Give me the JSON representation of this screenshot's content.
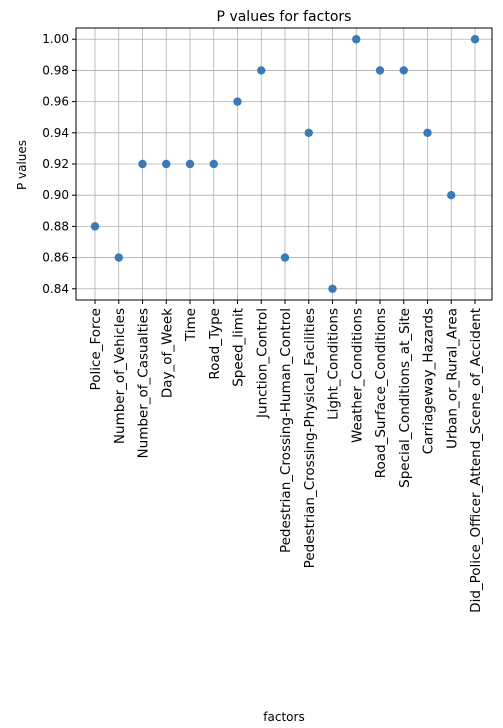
{
  "chart_data": {
    "type": "scatter",
    "title": "P values for factors",
    "xlabel": "factors",
    "ylabel": "P values",
    "categories": [
      "Police_Force",
      "Number_of_Vehicles",
      "Number_of_Casualties",
      "Day_of_Week",
      "Time",
      "Road_Type",
      "Speed_limit",
      "Junction_Control",
      "Pedestrian_Crossing-Human_Control",
      "Pedestrian_Crossing-Physical_Facilities",
      "Light_Conditions",
      "Weather_Conditions",
      "Road_Surface_Conditions",
      "Special_Conditions_at_Site",
      "Carriageway_Hazards",
      "Urban_or_Rural_Area",
      "Did_Police_Officer_Attend_Scene_of_Accident"
    ],
    "values": [
      0.88,
      0.86,
      0.92,
      0.92,
      0.92,
      0.92,
      0.96,
      0.98,
      0.86,
      0.94,
      0.84,
      1.0,
      0.98,
      0.98,
      0.94,
      0.9,
      1.0
    ],
    "yticks": [
      "0.84",
      "0.86",
      "0.88",
      "0.90",
      "0.92",
      "0.94",
      "0.96",
      "0.98",
      "1.00"
    ],
    "ylim": [
      0.8328,
      1.0072
    ],
    "grid": true,
    "marker_color": "#3a7ab5"
  }
}
